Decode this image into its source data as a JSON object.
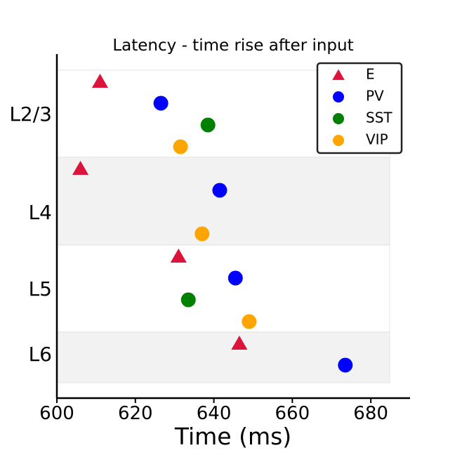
{
  "chart_data": {
    "type": "scatter",
    "title": "Latency - time rise after input",
    "xlabel": "Time (ms)",
    "ylabel": "",
    "xlim": [
      600,
      690
    ],
    "xticks": [
      600,
      620,
      640,
      660,
      680
    ],
    "grid": false,
    "legend_position": "top-right",
    "layers": [
      {
        "label": "L2/3",
        "shaded": false
      },
      {
        "label": "L4",
        "shaded": true
      },
      {
        "label": "L5",
        "shaded": false
      },
      {
        "label": "L6",
        "shaded": true
      }
    ],
    "series": [
      {
        "name": "E",
        "marker": "triangle",
        "color": "#dc143c",
        "points": [
          {
            "layer": "L2/3",
            "x": 611
          },
          {
            "layer": "L4",
            "x": 606
          },
          {
            "layer": "L5",
            "x": 631
          },
          {
            "layer": "L6",
            "x": 646.5
          }
        ]
      },
      {
        "name": "PV",
        "marker": "circle",
        "color": "#0000ff",
        "points": [
          {
            "layer": "L2/3",
            "x": 626.5
          },
          {
            "layer": "L4",
            "x": 641.5
          },
          {
            "layer": "L5",
            "x": 645.5
          },
          {
            "layer": "L6",
            "x": 673.5
          }
        ]
      },
      {
        "name": "SST",
        "marker": "circle",
        "color": "#008000",
        "points": [
          {
            "layer": "L2/3",
            "x": 638.5
          },
          {
            "layer": "L5",
            "x": 633.5
          }
        ]
      },
      {
        "name": "VIP",
        "marker": "circle",
        "color": "#ffa500",
        "points": [
          {
            "layer": "L2/3",
            "x": 631.5
          },
          {
            "layer": "L4",
            "x": 637
          },
          {
            "layer": "L5",
            "x": 649
          }
        ]
      }
    ]
  }
}
